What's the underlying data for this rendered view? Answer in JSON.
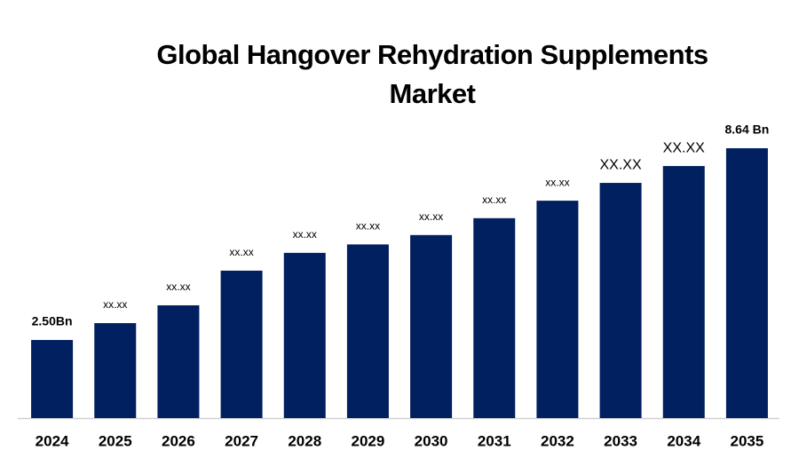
{
  "chart_data": {
    "type": "bar",
    "title": "Global Hangover Rehydration Supplements Market",
    "categories": [
      "2024",
      "2025",
      "2026",
      "2027",
      "2028",
      "2029",
      "2030",
      "2031",
      "2032",
      "2033",
      "2034",
      "2035"
    ],
    "values": [
      2.5,
      3.04,
      3.61,
      4.72,
      5.29,
      5.56,
      5.86,
      6.4,
      6.96,
      7.53,
      8.07,
      8.64
    ],
    "value_labels": [
      "2.50Bn",
      "xx.xx",
      "xx.xx",
      "xx.xx",
      "xx.xx",
      "xx.xx",
      "xx.xx",
      "xx.xx",
      "xx.xx",
      "XX.XX",
      "XX.XX",
      "8.64 Bn"
    ],
    "color": "#002060"
  }
}
